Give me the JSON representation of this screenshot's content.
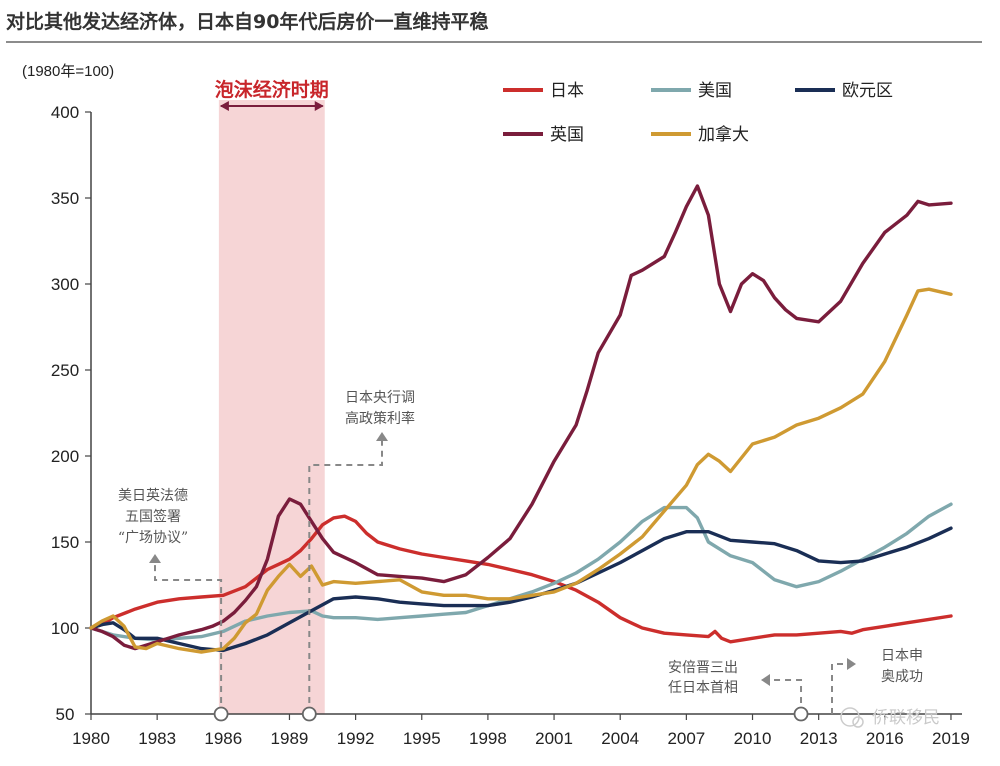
{
  "header": {
    "title": "对比其他发达经济体，日本自90年代后房价一直维持平稳",
    "unit_label": "(1980年=100)"
  },
  "bubble": {
    "label": "泡沫经济时期",
    "start": 1985.8,
    "end": 1990.6
  },
  "annotations": {
    "plaza": [
      "美日英法德",
      "五国签署",
      "“广场协议”"
    ],
    "boj": [
      "日本央行调",
      "高政策利率"
    ],
    "abe": [
      "安倍晋三出",
      "任日本首相"
    ],
    "olympics": [
      "日本申",
      "奥成功"
    ]
  },
  "markers": [
    1985.9,
    1989.9,
    2012.2
  ],
  "watermark": "侨联移民",
  "colors": {
    "japan": "#cc2e2c",
    "usa": "#7fa8ad",
    "euro": "#1a2e55",
    "uk": "#7a1d3c",
    "canada": "#cf9a32",
    "bubble_band": "#f6d5d6",
    "annotation": "#888888"
  },
  "chart_data": {
    "type": "line",
    "title": "对比其他发达经济体，日本自90年代后房价一直维持平稳",
    "ylabel": "(1980年=100)",
    "xlabel": "",
    "xlim": [
      1980,
      2019.5
    ],
    "ylim": [
      50,
      400
    ],
    "x_ticks": [
      "1980",
      "1983",
      "1986",
      "1989",
      "1992",
      "1995",
      "1998",
      "2001",
      "2004",
      "2007",
      "2010",
      "2013",
      "2016",
      "2019"
    ],
    "y_ticks": [
      "50",
      "100",
      "150",
      "200",
      "250",
      "300",
      "350",
      "400"
    ],
    "legend_position": "top-right",
    "grid": false,
    "series": [
      {
        "name": "日本",
        "color_key": "japan",
        "points": [
          [
            1980,
            100
          ],
          [
            1980.5,
            102
          ],
          [
            1981,
            106
          ],
          [
            1982,
            111
          ],
          [
            1983,
            115
          ],
          [
            1984,
            117
          ],
          [
            1985,
            118
          ],
          [
            1986,
            119
          ],
          [
            1987,
            124
          ],
          [
            1987.5,
            129
          ],
          [
            1988,
            134
          ],
          [
            1988.5,
            137
          ],
          [
            1989,
            140
          ],
          [
            1989.5,
            145
          ],
          [
            1990,
            152
          ],
          [
            1990.5,
            160
          ],
          [
            1991,
            164
          ],
          [
            1991.5,
            165
          ],
          [
            1992,
            162
          ],
          [
            1992.5,
            155
          ],
          [
            1993,
            150
          ],
          [
            1994,
            146
          ],
          [
            1995,
            143
          ],
          [
            1996,
            141
          ],
          [
            1997,
            139
          ],
          [
            1998,
            137
          ],
          [
            1999,
            134
          ],
          [
            2000,
            131
          ],
          [
            2001,
            127
          ],
          [
            2002,
            122
          ],
          [
            2003,
            115
          ],
          [
            2004,
            106
          ],
          [
            2005,
            100
          ],
          [
            2006,
            97
          ],
          [
            2007,
            96
          ],
          [
            2008,
            95
          ],
          [
            2008.3,
            98
          ],
          [
            2008.6,
            94
          ],
          [
            2009,
            92
          ],
          [
            2010,
            94
          ],
          [
            2011,
            96
          ],
          [
            2012,
            96
          ],
          [
            2013,
            97
          ],
          [
            2014,
            98
          ],
          [
            2014.5,
            97
          ],
          [
            2015,
            99
          ],
          [
            2016,
            101
          ],
          [
            2017,
            103
          ],
          [
            2018,
            105
          ],
          [
            2019,
            107
          ]
        ]
      },
      {
        "name": "美国",
        "color_key": "usa",
        "points": [
          [
            1980,
            100
          ],
          [
            1981,
            96
          ],
          [
            1982,
            94
          ],
          [
            1983,
            93
          ],
          [
            1984,
            94
          ],
          [
            1985,
            95
          ],
          [
            1986,
            98
          ],
          [
            1987,
            104
          ],
          [
            1988,
            107
          ],
          [
            1989,
            109
          ],
          [
            1990,
            110
          ],
          [
            1990.5,
            107
          ],
          [
            1991,
            106
          ],
          [
            1992,
            106
          ],
          [
            1993,
            105
          ],
          [
            1994,
            106
          ],
          [
            1995,
            107
          ],
          [
            1996,
            108
          ],
          [
            1997,
            109
          ],
          [
            1998,
            113
          ],
          [
            1999,
            117
          ],
          [
            2000,
            121
          ],
          [
            2001,
            126
          ],
          [
            2002,
            132
          ],
          [
            2003,
            140
          ],
          [
            2004,
            150
          ],
          [
            2005,
            162
          ],
          [
            2006,
            170
          ],
          [
            2007,
            170
          ],
          [
            2007.5,
            164
          ],
          [
            2008,
            150
          ],
          [
            2009,
            142
          ],
          [
            2010,
            138
          ],
          [
            2011,
            128
          ],
          [
            2012,
            124
          ],
          [
            2013,
            127
          ],
          [
            2014,
            133
          ],
          [
            2015,
            140
          ],
          [
            2016,
            147
          ],
          [
            2017,
            155
          ],
          [
            2018,
            165
          ],
          [
            2019,
            172
          ]
        ]
      },
      {
        "name": "欧元区",
        "color_key": "euro",
        "points": [
          [
            1980,
            100
          ],
          [
            1980.5,
            102
          ],
          [
            1981,
            103
          ],
          [
            1981.5,
            99
          ],
          [
            1982,
            94
          ],
          [
            1983,
            94
          ],
          [
            1984,
            91
          ],
          [
            1985,
            88
          ],
          [
            1986,
            87
          ],
          [
            1987,
            91
          ],
          [
            1988,
            96
          ],
          [
            1989,
            103
          ],
          [
            1990,
            110
          ],
          [
            1991,
            117
          ],
          [
            1992,
            118
          ],
          [
            1993,
            117
          ],
          [
            1994,
            115
          ],
          [
            1995,
            114
          ],
          [
            1996,
            113
          ],
          [
            1997,
            113
          ],
          [
            1998,
            113
          ],
          [
            1999,
            115
          ],
          [
            2000,
            118
          ],
          [
            2001,
            122
          ],
          [
            2002,
            126
          ],
          [
            2003,
            132
          ],
          [
            2004,
            138
          ],
          [
            2005,
            145
          ],
          [
            2006,
            152
          ],
          [
            2007,
            156
          ],
          [
            2008,
            156
          ],
          [
            2009,
            151
          ],
          [
            2010,
            150
          ],
          [
            2011,
            149
          ],
          [
            2012,
            145
          ],
          [
            2013,
            139
          ],
          [
            2014,
            138
          ],
          [
            2015,
            139
          ],
          [
            2016,
            143
          ],
          [
            2017,
            147
          ],
          [
            2018,
            152
          ],
          [
            2019,
            158
          ]
        ]
      },
      {
        "name": "英国",
        "color_key": "uk",
        "points": [
          [
            1980,
            100
          ],
          [
            1980.5,
            98
          ],
          [
            1981,
            95
          ],
          [
            1981.5,
            90
          ],
          [
            1982,
            88
          ],
          [
            1983,
            92
          ],
          [
            1984,
            96
          ],
          [
            1985,
            99
          ],
          [
            1985.5,
            101
          ],
          [
            1986,
            104
          ],
          [
            1986.5,
            109
          ],
          [
            1987,
            116
          ],
          [
            1987.5,
            124
          ],
          [
            1988,
            140
          ],
          [
            1988.5,
            165
          ],
          [
            1989,
            175
          ],
          [
            1989.5,
            172
          ],
          [
            1990,
            162
          ],
          [
            1990.5,
            152
          ],
          [
            1991,
            144
          ],
          [
            1992,
            138
          ],
          [
            1993,
            131
          ],
          [
            1994,
            130
          ],
          [
            1995,
            129
          ],
          [
            1996,
            127
          ],
          [
            1997,
            131
          ],
          [
            1998,
            141
          ],
          [
            1999,
            152
          ],
          [
            2000,
            172
          ],
          [
            2001,
            197
          ],
          [
            2002,
            218
          ],
          [
            2002.5,
            238
          ],
          [
            2003,
            260
          ],
          [
            2004,
            282
          ],
          [
            2004.5,
            305
          ],
          [
            2005,
            308
          ],
          [
            2006,
            316
          ],
          [
            2006.5,
            330
          ],
          [
            2007,
            345
          ],
          [
            2007.5,
            357
          ],
          [
            2008,
            340
          ],
          [
            2008.5,
            300
          ],
          [
            2009,
            284
          ],
          [
            2009.5,
            300
          ],
          [
            2010,
            306
          ],
          [
            2010.5,
            302
          ],
          [
            2011,
            292
          ],
          [
            2011.5,
            285
          ],
          [
            2012,
            280
          ],
          [
            2013,
            278
          ],
          [
            2014,
            290
          ],
          [
            2015,
            312
          ],
          [
            2016,
            330
          ],
          [
            2017,
            340
          ],
          [
            2017.5,
            348
          ],
          [
            2018,
            346
          ],
          [
            2019,
            347
          ]
        ]
      },
      {
        "name": "加拿大",
        "color_key": "canada",
        "points": [
          [
            1980,
            100
          ],
          [
            1980.5,
            104
          ],
          [
            1981,
            107
          ],
          [
            1981.5,
            101
          ],
          [
            1982,
            89
          ],
          [
            1982.5,
            88
          ],
          [
            1983,
            91
          ],
          [
            1984,
            88
          ],
          [
            1985,
            86
          ],
          [
            1986,
            88
          ],
          [
            1986.5,
            94
          ],
          [
            1987,
            103
          ],
          [
            1987.5,
            108
          ],
          [
            1988,
            122
          ],
          [
            1988.5,
            130
          ],
          [
            1989,
            137
          ],
          [
            1989.5,
            130
          ],
          [
            1990,
            136
          ],
          [
            1990.5,
            125
          ],
          [
            1991,
            127
          ],
          [
            1992,
            126
          ],
          [
            1993,
            127
          ],
          [
            1994,
            128
          ],
          [
            1995,
            121
          ],
          [
            1996,
            119
          ],
          [
            1997,
            119
          ],
          [
            1998,
            117
          ],
          [
            1999,
            117
          ],
          [
            2000,
            119
          ],
          [
            2001,
            121
          ],
          [
            2002,
            126
          ],
          [
            2003,
            134
          ],
          [
            2004,
            143
          ],
          [
            2005,
            153
          ],
          [
            2006,
            168
          ],
          [
            2007,
            183
          ],
          [
            2007.5,
            195
          ],
          [
            2008,
            201
          ],
          [
            2008.5,
            197
          ],
          [
            2009,
            191
          ],
          [
            2010,
            207
          ],
          [
            2011,
            211
          ],
          [
            2012,
            218
          ],
          [
            2013,
            222
          ],
          [
            2014,
            228
          ],
          [
            2015,
            236
          ],
          [
            2016,
            255
          ],
          [
            2017,
            282
          ],
          [
            2017.5,
            296
          ],
          [
            2018,
            297
          ],
          [
            2019,
            294
          ]
        ]
      }
    ]
  }
}
